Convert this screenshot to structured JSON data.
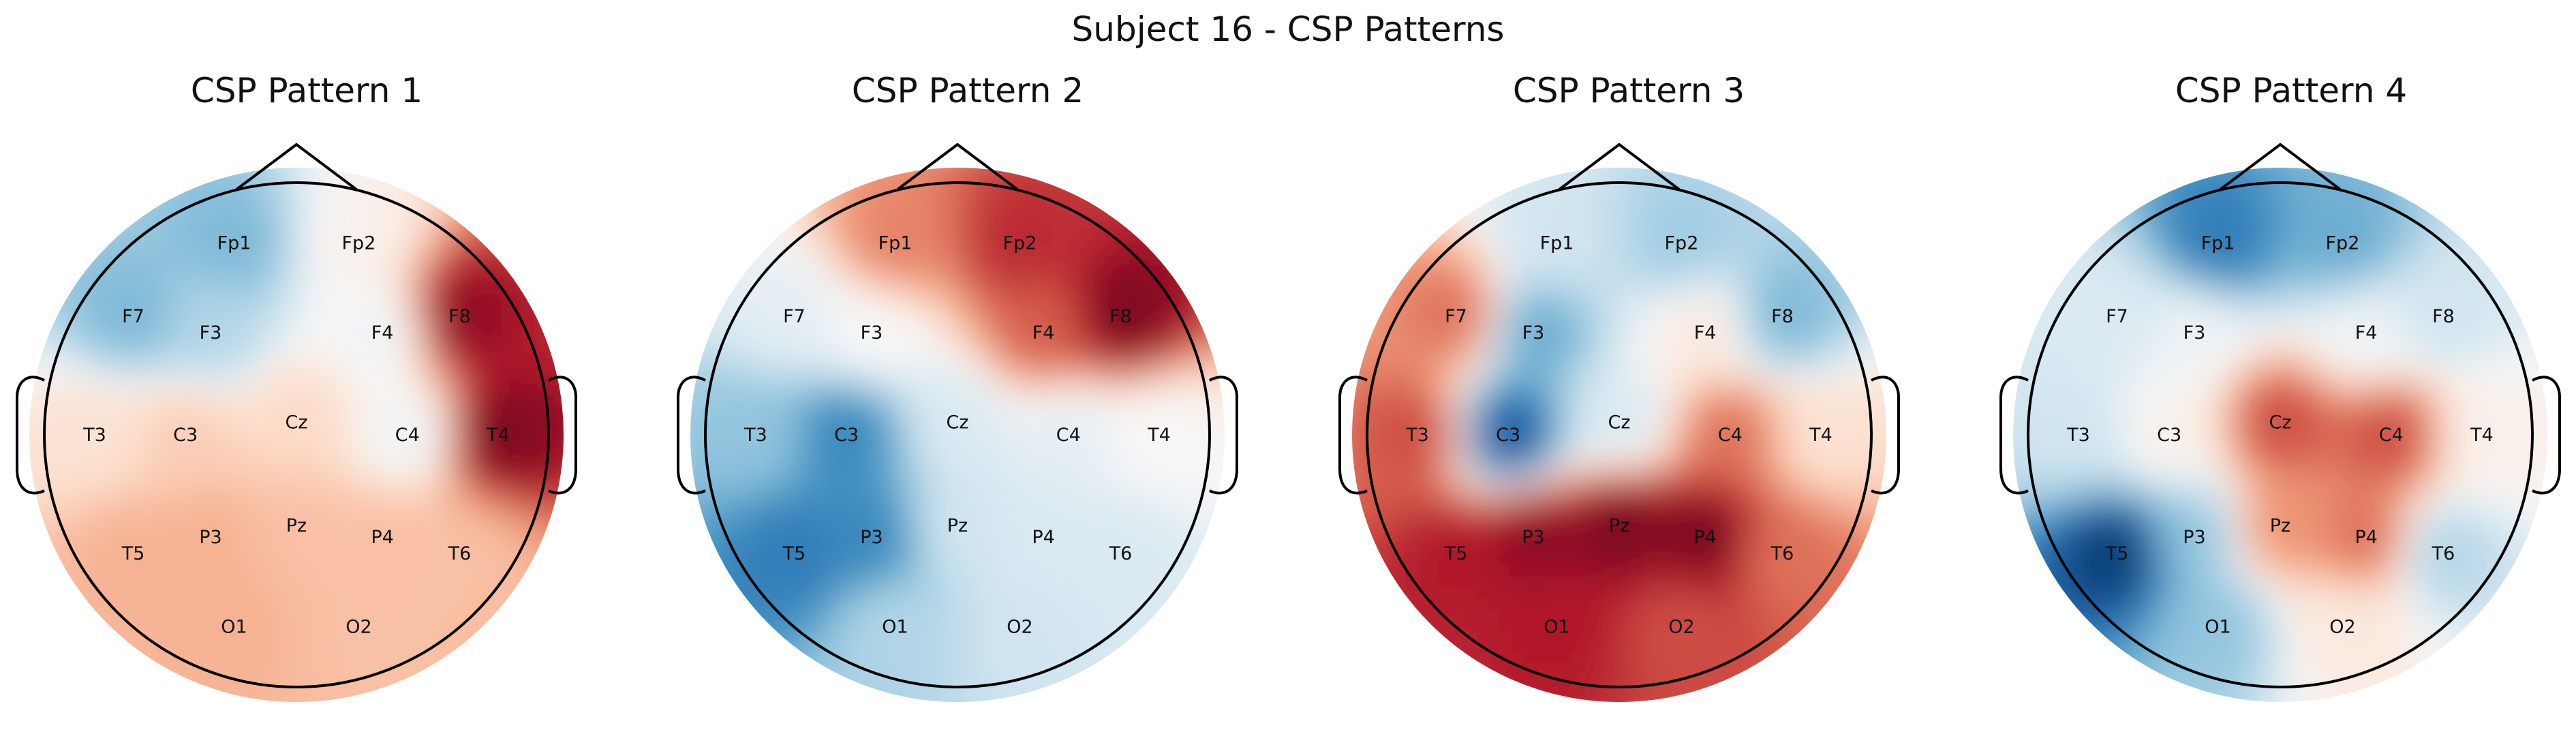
{
  "figure": {
    "title": "Subject 16 - CSP Patterns"
  },
  "colormap": {
    "name": "RdBu_r",
    "stops": [
      "#053061",
      "#2166ac",
      "#4393c3",
      "#92c5de",
      "#d1e5f0",
      "#f7f7f7",
      "#fddbc7",
      "#f4a582",
      "#d6604d",
      "#b2182b",
      "#67001f"
    ]
  },
  "electrodes": [
    {
      "label": "Fp1",
      "theta": -18,
      "r": 0.8
    },
    {
      "label": "Fp2",
      "theta": 18,
      "r": 0.8
    },
    {
      "label": "F7",
      "theta": -54,
      "r": 0.8
    },
    {
      "label": "F3",
      "theta": -40,
      "r": 0.53
    },
    {
      "label": "F4",
      "theta": 40,
      "r": 0.53
    },
    {
      "label": "F8",
      "theta": 54,
      "r": 0.8
    },
    {
      "label": "T3",
      "theta": -90,
      "r": 0.8
    },
    {
      "label": "C3",
      "theta": -90,
      "r": 0.44
    },
    {
      "label": "Cz",
      "theta": 0,
      "r": 0.05
    },
    {
      "label": "C4",
      "theta": 90,
      "r": 0.44
    },
    {
      "label": "T4",
      "theta": 90,
      "r": 0.8
    },
    {
      "label": "T5",
      "theta": -126,
      "r": 0.8
    },
    {
      "label": "P3",
      "theta": -140,
      "r": 0.53
    },
    {
      "label": "Pz",
      "theta": 180,
      "r": 0.36
    },
    {
      "label": "P4",
      "theta": 140,
      "r": 0.53
    },
    {
      "label": "T6",
      "theta": 126,
      "r": 0.8
    },
    {
      "label": "O1",
      "theta": -162,
      "r": 0.8
    },
    {
      "label": "O2",
      "theta": 162,
      "r": 0.8
    }
  ],
  "patterns": [
    {
      "title": "CSP Pattern 1",
      "values": {
        "Fp1": -0.45,
        "Fp2": 0.05,
        "F7": -0.45,
        "F3": -0.3,
        "F4": -0.05,
        "F8": 0.9,
        "T3": 0.15,
        "C3": 0.25,
        "Cz": 0.2,
        "C4": -0.05,
        "T4": 0.95,
        "T5": 0.35,
        "P3": 0.35,
        "Pz": 0.3,
        "P4": 0.3,
        "T6": 0.3,
        "O1": 0.35,
        "O2": 0.3
      }
    },
    {
      "title": "CSP Pattern 2",
      "values": {
        "Fp1": 0.5,
        "Fp2": 0.75,
        "F7": -0.1,
        "F3": 0.0,
        "F4": 0.6,
        "F8": 0.95,
        "T3": -0.4,
        "C3": -0.65,
        "Cz": -0.15,
        "C4": -0.1,
        "T4": 0.0,
        "T5": -0.7,
        "P3": -0.65,
        "Pz": -0.2,
        "P4": -0.15,
        "T6": -0.15,
        "O1": -0.3,
        "O2": -0.2
      }
    },
    {
      "title": "CSP Pattern 3",
      "values": {
        "Fp1": -0.2,
        "Fp2": -0.35,
        "F7": 0.55,
        "F3": -0.5,
        "F4": 0.1,
        "F8": -0.45,
        "T3": 0.65,
        "C3": -0.85,
        "Cz": -0.15,
        "C4": 0.55,
        "T4": 0.15,
        "T5": 0.8,
        "P3": 0.9,
        "Pz": 0.95,
        "P4": 0.95,
        "T6": 0.55,
        "O1": 0.8,
        "O2": 0.65
      }
    },
    {
      "title": "CSP Pattern 4",
      "values": {
        "Fp1": -0.7,
        "Fp2": -0.5,
        "F7": -0.15,
        "F3": -0.05,
        "F4": -0.05,
        "F8": -0.2,
        "T3": -0.2,
        "C3": 0.05,
        "Cz": 0.65,
        "C4": 0.65,
        "T4": 0.05,
        "T5": -0.95,
        "P3": -0.4,
        "Pz": 0.45,
        "P4": 0.55,
        "T6": -0.3,
        "O1": -0.4,
        "O2": 0.1
      }
    }
  ]
}
